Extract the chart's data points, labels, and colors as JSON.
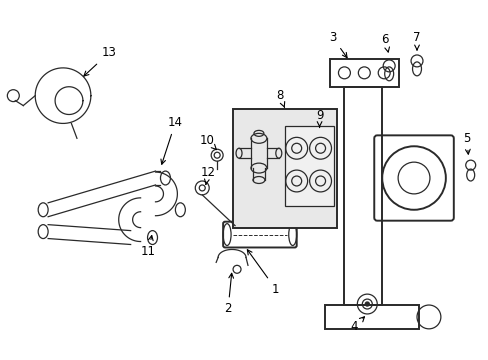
{
  "bg_color": "#ffffff",
  "line_color": "#2a2a2a",
  "label_color": "#000000",
  "fig_width": 4.89,
  "fig_height": 3.6,
  "dpi": 100,
  "box8_color": "#e8e8e8",
  "box9_color": "#f0f0f0"
}
